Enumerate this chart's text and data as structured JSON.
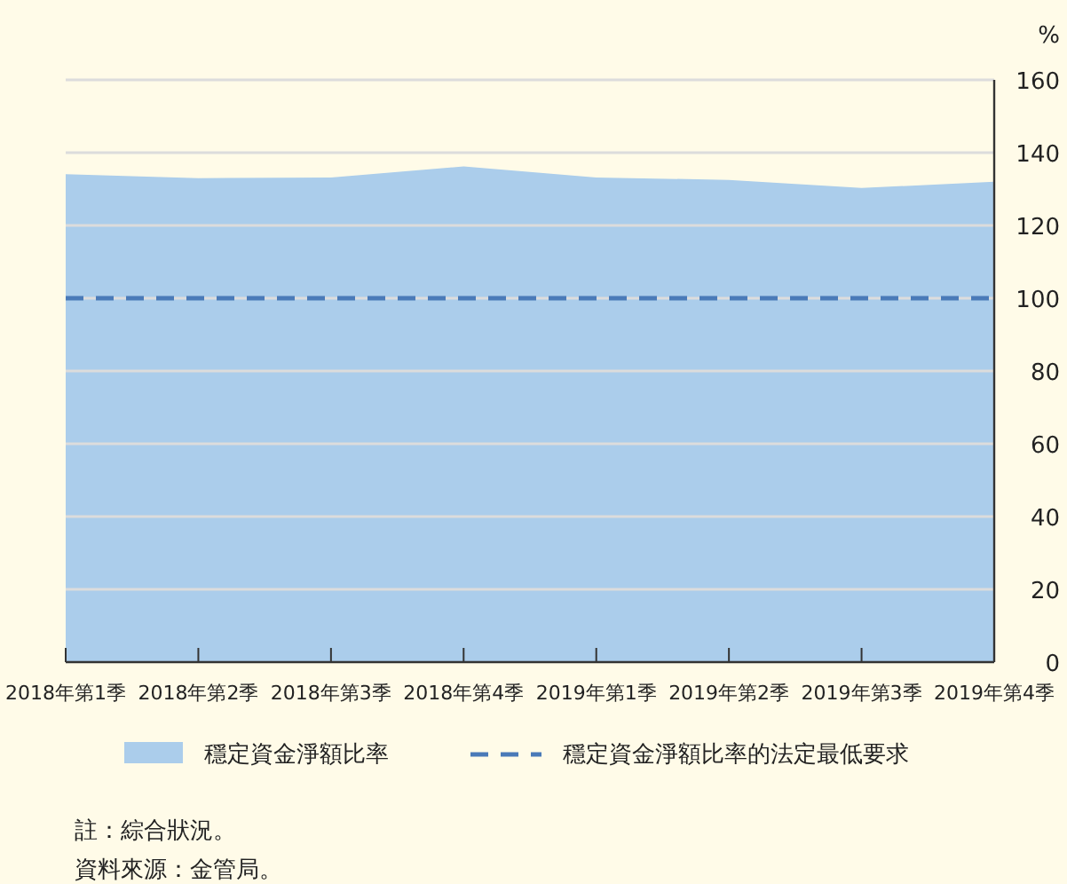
{
  "chart_data": {
    "type": "area",
    "ylabel": "%",
    "categories": [
      "2018年第1季",
      "2018年第2季",
      "2018年第3季",
      "2018年第4季",
      "2019年第1季",
      "2019年第2季",
      "2019年第3季",
      "2019年第4季"
    ],
    "series": [
      {
        "name": "穩定資金淨額比率",
        "color": "#abcdeb",
        "values": [
          134.1,
          133.0,
          133.2,
          136.2,
          133.2,
          132.5,
          130.3,
          132.0
        ]
      }
    ],
    "ylim": [
      0,
      160
    ],
    "yticks": [
      0,
      20,
      40,
      60,
      80,
      100,
      120,
      140,
      160
    ],
    "grid": "y",
    "legend": "bottom",
    "ref_lines": [
      {
        "axis": "y",
        "value": 100,
        "label": "穩定資金淨額比率的法定最低要求",
        "color": "#4a7ab8",
        "line_style": "dashed"
      }
    ],
    "annotations": [
      "註：綜合狀況。",
      "資料來源：金管局。"
    ]
  }
}
